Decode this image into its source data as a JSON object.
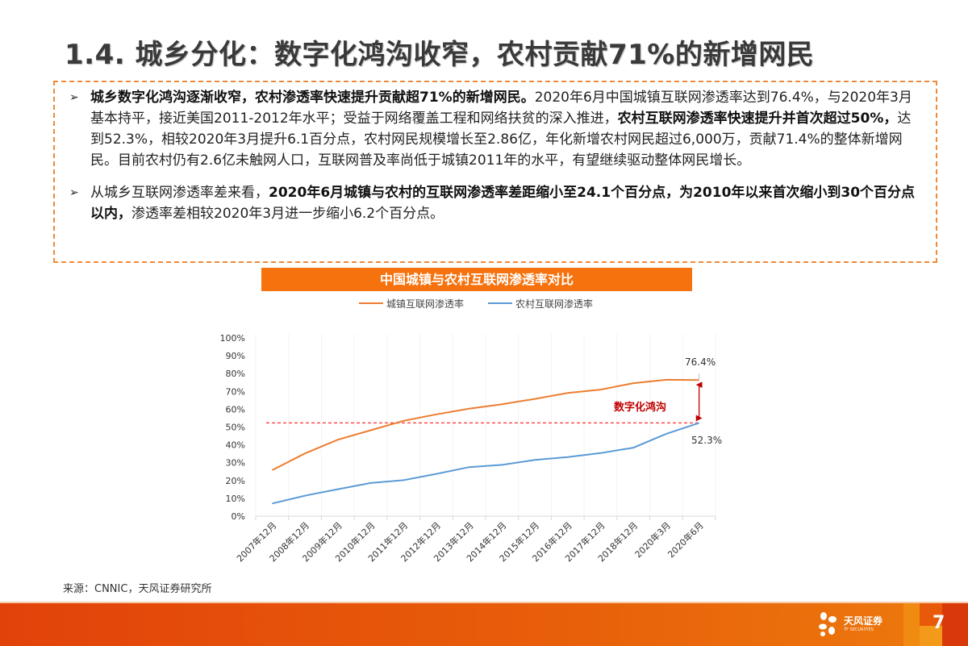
{
  "page": {
    "title": "1.4. 城乡分化：数字化鸿沟收窄，农村贡献71%的新增网民",
    "number": "7"
  },
  "summary": {
    "bullets": [
      {
        "segments": [
          {
            "text": "城乡数字化鸿沟逐渐收窄，农村渗透率快速提升贡献超71%的新增网民。",
            "bold": true
          },
          {
            "text": "2020年6月中国城镇互联网渗透率达到76.4%，与2020年3月基本持平，接近美国2011-2012年水平；受益于网络覆盖工程和网络扶贫的深入推进，",
            "bold": false
          },
          {
            "text": "农村互联网渗透率快速提升并首次超过50%，",
            "bold": true
          },
          {
            "text": "达到52.3%，相较2020年3月提升6.1百分点，农村网民规模增长至2.86亿，年化新增农村网民超过6,000万，贡献71.4%的整体新增网民。目前农村仍有2.6亿未触网人口，互联网普及率尚低于城镇2011年的水平，有望继续驱动整体网民增长。",
            "bold": false
          }
        ]
      },
      {
        "segments": [
          {
            "text": "从城乡互联网渗透率差来看，",
            "bold": false
          },
          {
            "text": "2020年6月城镇与农村的互联网渗透率差距缩小至24.1个百分点，为2010年以来首次缩小到30个百分点以内，",
            "bold": true
          },
          {
            "text": "渗透率差相较2020年3月进一步缩小6.2个百分点。",
            "bold": false
          }
        ]
      }
    ]
  },
  "chart_data": {
    "type": "line",
    "title": "中国城镇与农村互联网渗透率对比",
    "xlabel": "",
    "ylabel": "",
    "ylim": [
      0,
      100
    ],
    "yticks": [
      "0%",
      "10%",
      "20%",
      "30%",
      "40%",
      "50%",
      "60%",
      "70%",
      "80%",
      "90%",
      "100%"
    ],
    "categories": [
      "2007年12月",
      "2008年12月",
      "2009年12月",
      "2010年12月",
      "2011年12月",
      "2012年12月",
      "2013年12月",
      "2014年12月",
      "2015年12月",
      "2016年12月",
      "2017年12月",
      "2018年12月",
      "2020年3月",
      "2020年6月"
    ],
    "series": [
      {
        "name": "城镇互联网渗透率",
        "color": "#ed7d31",
        "values": [
          25.8,
          35.2,
          42.9,
          48.2,
          53.5,
          57.1,
          60.3,
          62.8,
          65.8,
          69.1,
          71.0,
          74.6,
          76.5,
          76.4
        ]
      },
      {
        "name": "农村互联网渗透率",
        "color": "#5b9bd5",
        "values": [
          7.1,
          11.5,
          15.1,
          18.6,
          20.2,
          23.7,
          27.5,
          28.8,
          31.6,
          33.1,
          35.4,
          38.4,
          46.2,
          52.3
        ]
      }
    ],
    "annotations": [
      {
        "text": "76.4%",
        "target": "城镇互联网渗透率 2020年6月"
      },
      {
        "text": "52.3%",
        "target": "农村互联网渗透率 2020年6月"
      },
      {
        "text": "数字化鸿沟",
        "color": "#c00000",
        "type": "double-arrow between 52.3% and 76.4%"
      },
      {
        "type": "reference-line",
        "value": 52.3,
        "style": "dashed",
        "color": "#ff4b4b"
      }
    ],
    "grid": false,
    "legend_position": "top"
  },
  "chart_labels": {
    "label_urban_end": "76.4%",
    "label_rural_end": "52.3%",
    "gap_label": "数字化鸿沟",
    "legend_urban": "城镇互联网渗透率",
    "legend_rural": "农村互联网渗透率"
  },
  "source": "来源：CNNIC，天风证券研究所",
  "footer": {
    "logo_cn": "天风证券",
    "logo_en": "TF SECURITIES",
    "colors": {
      "primary": "#e2420a",
      "accent": "#f5720e"
    }
  }
}
